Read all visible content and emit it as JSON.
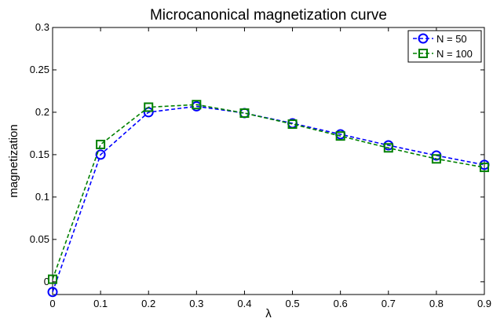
{
  "chart_data": {
    "type": "line",
    "title": "Microcanonical magnetization curve",
    "xlabel": "λ",
    "ylabel": "magnetization",
    "xlim": [
      0,
      0.9
    ],
    "ylim": [
      -0.015,
      0.3
    ],
    "x_ticks": [
      "0",
      "0.1",
      "0.2",
      "0.3",
      "0.4",
      "0.5",
      "0.6",
      "0.7",
      "0.8",
      "0.9"
    ],
    "y_ticks": [
      "0",
      "0.05",
      "0.1",
      "0.15",
      "0.2",
      "0.25",
      "0.3"
    ],
    "grid": false,
    "legend_position": "top-right",
    "x": [
      0,
      0.1,
      0.2,
      0.3,
      0.4,
      0.5,
      0.6,
      0.7,
      0.8,
      0.9
    ],
    "series": [
      {
        "name": "N = 50",
        "color": "#0000ff",
        "marker": "circle",
        "line_style": "dashed",
        "values": [
          -0.012,
          0.15,
          0.2,
          0.207,
          0.199,
          0.187,
          0.174,
          0.161,
          0.149,
          0.138
        ]
      },
      {
        "name": "N = 100",
        "color": "#008000",
        "marker": "square",
        "line_style": "dashed",
        "values": [
          0.003,
          0.162,
          0.206,
          0.209,
          0.199,
          0.186,
          0.172,
          0.158,
          0.145,
          0.135
        ]
      }
    ]
  }
}
